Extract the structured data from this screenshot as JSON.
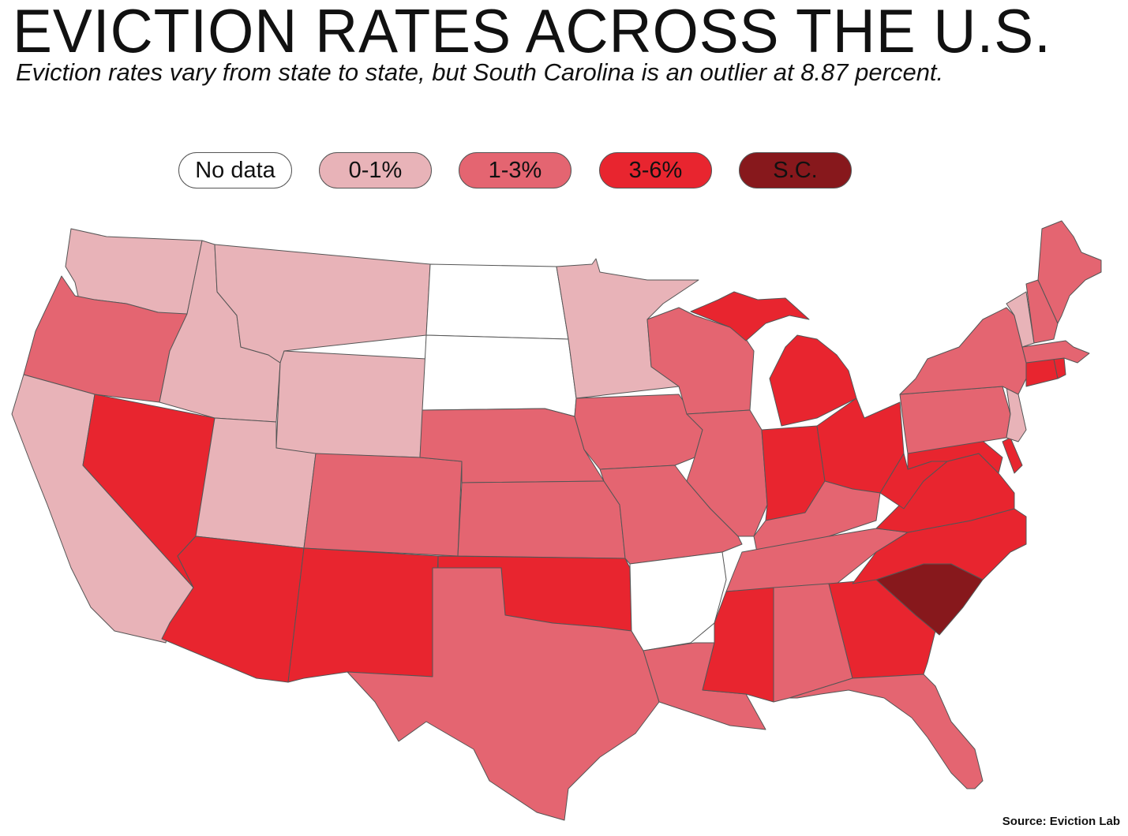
{
  "title": "EVICTION RATES ACROSS THE U.S.",
  "subtitle": "Eviction rates vary from state to state, but South Carolina is an outlier at 8.87 percent.",
  "source": "Source: Eviction Lab",
  "legend": [
    {
      "key": "nodata",
      "label": "No data",
      "color": "#ffffff"
    },
    {
      "key": "low",
      "label": "0-1%",
      "color": "#e8b3b8"
    },
    {
      "key": "mid",
      "label": "1-3%",
      "color": "#e46571"
    },
    {
      "key": "high",
      "label": "3-6%",
      "color": "#e8252f"
    },
    {
      "key": "sc",
      "label": "S.C.",
      "color": "#87181c"
    }
  ],
  "states": [
    {
      "name": "Washington",
      "category": "low"
    },
    {
      "name": "Oregon",
      "category": "mid"
    },
    {
      "name": "California",
      "category": "low"
    },
    {
      "name": "Nevada",
      "category": "high"
    },
    {
      "name": "Idaho",
      "category": "low"
    },
    {
      "name": "Montana",
      "category": "low"
    },
    {
      "name": "Wyoming",
      "category": "low"
    },
    {
      "name": "Utah",
      "category": "low"
    },
    {
      "name": "Arizona",
      "category": "high"
    },
    {
      "name": "Colorado",
      "category": "mid"
    },
    {
      "name": "New Mexico",
      "category": "high"
    },
    {
      "name": "North Dakota",
      "category": "nodata"
    },
    {
      "name": "South Dakota",
      "category": "nodata"
    },
    {
      "name": "Nebraska",
      "category": "mid"
    },
    {
      "name": "Kansas",
      "category": "mid"
    },
    {
      "name": "Oklahoma",
      "category": "high"
    },
    {
      "name": "Texas",
      "category": "mid"
    },
    {
      "name": "Minnesota",
      "category": "low"
    },
    {
      "name": "Iowa",
      "category": "mid"
    },
    {
      "name": "Missouri",
      "category": "mid"
    },
    {
      "name": "Arkansas",
      "category": "nodata"
    },
    {
      "name": "Louisiana",
      "category": "mid"
    },
    {
      "name": "Wisconsin",
      "category": "mid"
    },
    {
      "name": "Illinois",
      "category": "mid"
    },
    {
      "name": "Michigan",
      "category": "high"
    },
    {
      "name": "Indiana",
      "category": "high"
    },
    {
      "name": "Ohio",
      "category": "high"
    },
    {
      "name": "Kentucky",
      "category": "mid"
    },
    {
      "name": "Tennessee",
      "category": "mid"
    },
    {
      "name": "Mississippi",
      "category": "high"
    },
    {
      "name": "Alabama",
      "category": "mid"
    },
    {
      "name": "Georgia",
      "category": "high"
    },
    {
      "name": "Florida",
      "category": "mid"
    },
    {
      "name": "South Carolina",
      "category": "sc"
    },
    {
      "name": "North Carolina",
      "category": "high"
    },
    {
      "name": "Virginia",
      "category": "high"
    },
    {
      "name": "West Virginia",
      "category": "high"
    },
    {
      "name": "Maryland",
      "category": "high"
    },
    {
      "name": "Delaware",
      "category": "high"
    },
    {
      "name": "Pennsylvania",
      "category": "mid"
    },
    {
      "name": "New Jersey",
      "category": "low"
    },
    {
      "name": "New York",
      "category": "mid"
    },
    {
      "name": "Connecticut",
      "category": "high"
    },
    {
      "name": "Rhode Island",
      "category": "high"
    },
    {
      "name": "Massachusetts",
      "category": "mid"
    },
    {
      "name": "Vermont",
      "category": "low"
    },
    {
      "name": "New Hampshire",
      "category": "mid"
    },
    {
      "name": "Maine",
      "category": "mid"
    }
  ]
}
